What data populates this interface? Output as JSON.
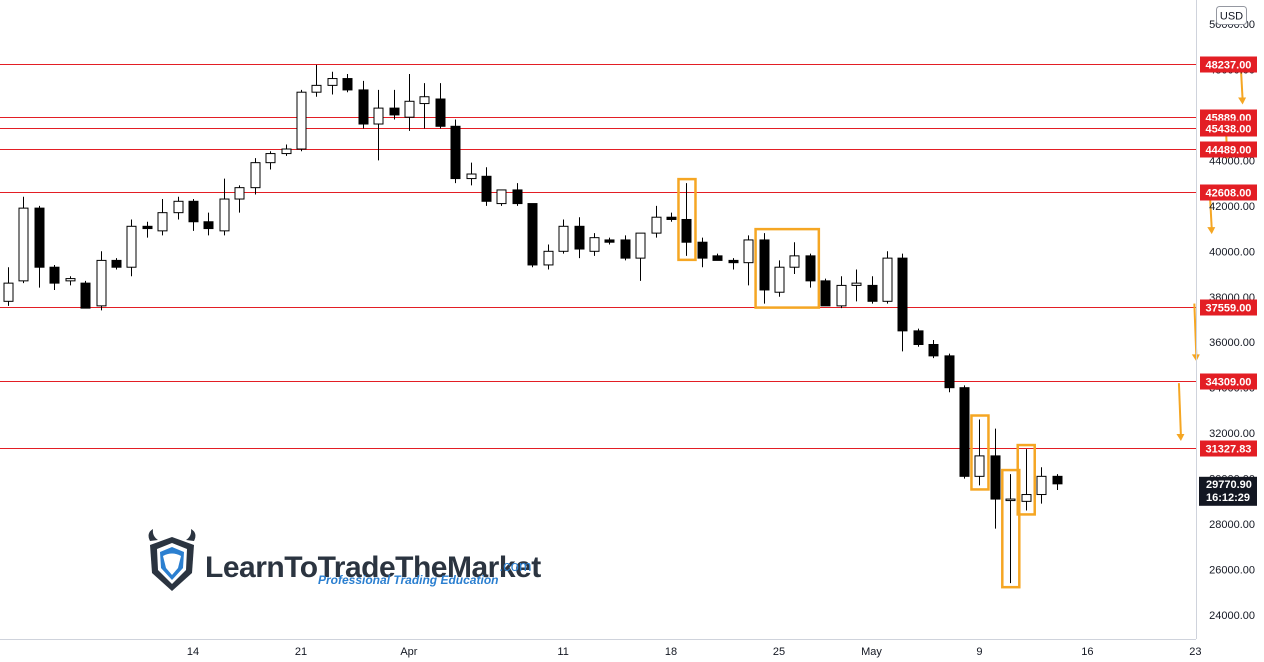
{
  "chart_data": {
    "type": "candlestick",
    "currency": "USD",
    "ylim": [
      23500,
      51000
    ],
    "y_ticks": [
      "24000.00",
      "26000.00",
      "28000.00",
      "30000.00",
      "32000.00",
      "34000.00",
      "36000.00",
      "38000.00",
      "40000.00",
      "42000.00",
      "44000.00",
      "46000.00",
      "48000.00",
      "50000.00"
    ],
    "x_ticks": [
      "14",
      "21",
      "Apr",
      "11",
      "18",
      "25",
      "May",
      "9",
      "16",
      "23"
    ],
    "x_tick_index": [
      12,
      19,
      26,
      36,
      43,
      50,
      56,
      63,
      70,
      77
    ],
    "candles": [
      {
        "o": 37800,
        "h": 39300,
        "l": 37600,
        "c": 38600
      },
      {
        "o": 38700,
        "h": 42400,
        "l": 38600,
        "c": 41900
      },
      {
        "o": 41900,
        "h": 42000,
        "l": 38400,
        "c": 39300
      },
      {
        "o": 39300,
        "h": 39400,
        "l": 38300,
        "c": 38600
      },
      {
        "o": 38700,
        "h": 38900,
        "l": 38500,
        "c": 38800
      },
      {
        "o": 38600,
        "h": 38700,
        "l": 37600,
        "c": 37500
      },
      {
        "o": 37600,
        "h": 40000,
        "l": 37400,
        "c": 39600
      },
      {
        "o": 39600,
        "h": 39700,
        "l": 39200,
        "c": 39300
      },
      {
        "o": 39300,
        "h": 41400,
        "l": 38900,
        "c": 41100
      },
      {
        "o": 41100,
        "h": 41300,
        "l": 40600,
        "c": 41000
      },
      {
        "o": 40900,
        "h": 42300,
        "l": 40700,
        "c": 41700
      },
      {
        "o": 41700,
        "h": 42400,
        "l": 41400,
        "c": 42200
      },
      {
        "o": 42200,
        "h": 42300,
        "l": 40900,
        "c": 41300
      },
      {
        "o": 41300,
        "h": 41700,
        "l": 40700,
        "c": 41000
      },
      {
        "o": 40900,
        "h": 43200,
        "l": 40700,
        "c": 42300
      },
      {
        "o": 42300,
        "h": 42900,
        "l": 41700,
        "c": 42800
      },
      {
        "o": 42800,
        "h": 44100,
        "l": 42500,
        "c": 43900
      },
      {
        "o": 43900,
        "h": 44400,
        "l": 43600,
        "c": 44300
      },
      {
        "o": 44300,
        "h": 44700,
        "l": 44200,
        "c": 44500
      },
      {
        "o": 44500,
        "h": 47100,
        "l": 44400,
        "c": 47000
      },
      {
        "o": 47000,
        "h": 48200,
        "l": 46800,
        "c": 47300
      },
      {
        "o": 47300,
        "h": 47900,
        "l": 46900,
        "c": 47600
      },
      {
        "o": 47600,
        "h": 47800,
        "l": 47000,
        "c": 47100
      },
      {
        "o": 47100,
        "h": 47500,
        "l": 45400,
        "c": 45600
      },
      {
        "o": 45600,
        "h": 47100,
        "l": 44000,
        "c": 46300
      },
      {
        "o": 46300,
        "h": 47100,
        "l": 45800,
        "c": 46000
      },
      {
        "o": 45900,
        "h": 47800,
        "l": 45300,
        "c": 46600
      },
      {
        "o": 46500,
        "h": 47400,
        "l": 45400,
        "c": 46800
      },
      {
        "o": 46700,
        "h": 47400,
        "l": 45400,
        "c": 45500
      },
      {
        "o": 45500,
        "h": 45800,
        "l": 43000,
        "c": 43200
      },
      {
        "o": 43200,
        "h": 43900,
        "l": 42900,
        "c": 43400
      },
      {
        "o": 43300,
        "h": 43700,
        "l": 42000,
        "c": 42200
      },
      {
        "o": 42100,
        "h": 42700,
        "l": 42000,
        "c": 42700
      },
      {
        "o": 42700,
        "h": 43000,
        "l": 42000,
        "c": 42100
      },
      {
        "o": 42100,
        "h": 42100,
        "l": 39300,
        "c": 39400
      },
      {
        "o": 39400,
        "h": 40300,
        "l": 39200,
        "c": 40000
      },
      {
        "o": 40000,
        "h": 41400,
        "l": 39900,
        "c": 41100
      },
      {
        "o": 41100,
        "h": 41500,
        "l": 39700,
        "c": 40100
      },
      {
        "o": 40000,
        "h": 40800,
        "l": 39800,
        "c": 40600
      },
      {
        "o": 40500,
        "h": 40600,
        "l": 40300,
        "c": 40400
      },
      {
        "o": 40500,
        "h": 40700,
        "l": 39600,
        "c": 39700
      },
      {
        "o": 39700,
        "h": 40800,
        "l": 38700,
        "c": 40800
      },
      {
        "o": 40800,
        "h": 42000,
        "l": 40600,
        "c": 41500
      },
      {
        "o": 41500,
        "h": 41700,
        "l": 41300,
        "c": 41400
      },
      {
        "o": 41400,
        "h": 43000,
        "l": 39800,
        "c": 40400
      },
      {
        "o": 40400,
        "h": 40600,
        "l": 39300,
        "c": 39700
      },
      {
        "o": 39800,
        "h": 39900,
        "l": 39600,
        "c": 39600
      },
      {
        "o": 39600,
        "h": 39700,
        "l": 39200,
        "c": 39500
      },
      {
        "o": 39500,
        "h": 40700,
        "l": 38500,
        "c": 40500
      },
      {
        "o": 40500,
        "h": 40800,
        "l": 37700,
        "c": 38300
      },
      {
        "o": 38200,
        "h": 39600,
        "l": 38000,
        "c": 39300
      },
      {
        "o": 39300,
        "h": 40400,
        "l": 39000,
        "c": 39800
      },
      {
        "o": 39800,
        "h": 39900,
        "l": 38400,
        "c": 38700
      },
      {
        "o": 38700,
        "h": 38800,
        "l": 37600,
        "c": 37600
      },
      {
        "o": 37600,
        "h": 38900,
        "l": 37500,
        "c": 38500
      },
      {
        "o": 38500,
        "h": 39200,
        "l": 37800,
        "c": 38600
      },
      {
        "o": 38500,
        "h": 38900,
        "l": 37700,
        "c": 37800
      },
      {
        "o": 37800,
        "h": 40000,
        "l": 37700,
        "c": 39700
      },
      {
        "o": 39700,
        "h": 39900,
        "l": 35600,
        "c": 36500
      },
      {
        "o": 36500,
        "h": 36600,
        "l": 35800,
        "c": 35900
      },
      {
        "o": 35900,
        "h": 36100,
        "l": 35300,
        "c": 35400
      },
      {
        "o": 35400,
        "h": 35500,
        "l": 33800,
        "c": 34000
      },
      {
        "o": 34000,
        "h": 34100,
        "l": 30000,
        "c": 30100
      },
      {
        "o": 30100,
        "h": 32600,
        "l": 29700,
        "c": 31000
      },
      {
        "o": 31000,
        "h": 32200,
        "l": 27800,
        "c": 29100
      },
      {
        "o": 29100,
        "h": 30200,
        "l": 25400,
        "c": 29100
      },
      {
        "o": 29000,
        "h": 31300,
        "l": 28600,
        "c": 29300
      },
      {
        "o": 29300,
        "h": 30500,
        "l": 28900,
        "c": 30100
      },
      {
        "o": 30100,
        "h": 30200,
        "l": 29500,
        "c": 29770
      }
    ],
    "levels": [
      48237.0,
      45889.0,
      45438.0,
      44489.0,
      42608.0,
      37559.0,
      34309.0,
      31327.83
    ],
    "level_labels": [
      "48237.00",
      "45889.00",
      "45438.00",
      "44489.00",
      "42608.00",
      "37559.00",
      "34309.00",
      "31327.83"
    ],
    "level_color": "#e31e24",
    "current_price": "29770.90",
    "countdown": "16:12:29",
    "highlight_color": "#f5a623",
    "highlight_boxes": [
      [
        44,
        44
      ],
      [
        49,
        52
      ],
      [
        63,
        63
      ],
      [
        65,
        65
      ],
      [
        66,
        66
      ]
    ],
    "arrows": [
      {
        "x_index": 76,
        "y_from": 34200,
        "y_to": 31700
      },
      {
        "x_index": 77,
        "y_from": 37700,
        "y_to": 35200
      },
      {
        "x_index": 78,
        "y_from": 42600,
        "y_to": 40800
      },
      {
        "x_index": 79,
        "y_from": 46000,
        "y_to": 44100
      },
      {
        "x_index": 80,
        "y_from": 48300,
        "y_to": 46500
      }
    ]
  },
  "logo": {
    "name": "LearnToTradeTheMarket",
    "domain": ".com",
    "tagline": "Professional Trading Education"
  },
  "colors": {
    "bull_fill": "#ffffff",
    "bear_fill": "#000000",
    "wick": "#000000",
    "current_badge": "#131722",
    "axis_border": "#cfd3dc"
  }
}
